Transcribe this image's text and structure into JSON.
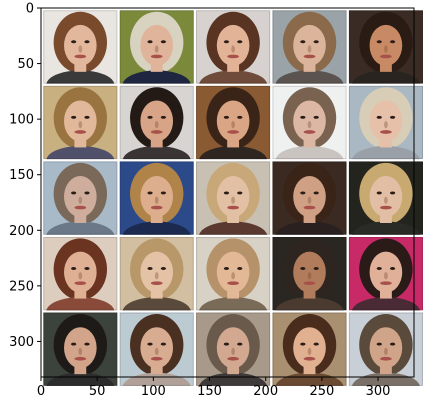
{
  "figure": {
    "x_ticks": [
      "0",
      "50",
      "100",
      "150",
      "200",
      "250",
      "300"
    ],
    "y_ticks": [
      "0",
      "50",
      "100",
      "150",
      "200",
      "250",
      "300"
    ],
    "grid": {
      "rows": 5,
      "cols": 5
    },
    "tiles": [
      {
        "bg": "#e9e6e2",
        "hair": "#7a4a2c",
        "skin": "#e2b79c",
        "shirt": "#3a3a3a"
      },
      {
        "bg": "#7b8a3a",
        "hair": "#d8d2c0",
        "skin": "#e0b49a",
        "shirt": "#1f2640"
      },
      {
        "bg": "#d7d2cf",
        "hair": "#5a3422",
        "skin": "#e3b398",
        "shirt": "#6e4b3a"
      },
      {
        "bg": "#9aa3a8",
        "hair": "#8a6a4a",
        "skin": "#dcb49c",
        "shirt": "#5a5350"
      },
      {
        "bg": "#3a2c24",
        "hair": "#2a1c14",
        "skin": "#c88a64",
        "shirt": "#2a2420"
      },
      {
        "bg": "#c8b080",
        "hair": "#9a7440",
        "skin": "#e2b89a",
        "shirt": "#50506a"
      },
      {
        "bg": "#d7d4d1",
        "hair": "#231a16",
        "skin": "#d8a488",
        "shirt": "#3a3434"
      },
      {
        "bg": "#8a5a32",
        "hair": "#3a2418",
        "skin": "#d9a584",
        "shirt": "#2f2622"
      },
      {
        "bg": "#eef1f0",
        "hair": "#7a6250",
        "skin": "#dcb8a4",
        "shirt": "#c9c4c0"
      },
      {
        "bg": "#aab8c4",
        "hair": "#d8cdb6",
        "skin": "#e6c0a8",
        "shirt": "#9aa0a8"
      },
      {
        "bg": "#a8bac8",
        "hair": "#7a6858",
        "skin": "#cfad9c",
        "shirt": "#6a7888"
      },
      {
        "bg": "#2c4a8a",
        "hair": "#b08448",
        "skin": "#dcae8e",
        "shirt": "#1c2a50"
      },
      {
        "bg": "#c8c0b2",
        "hair": "#c8a878",
        "skin": "#e2c0a4",
        "shirt": "#5a3a30"
      },
      {
        "bg": "#3a2a22",
        "hair": "#3a2418",
        "skin": "#d0a084",
        "shirt": "#2a2020"
      },
      {
        "bg": "#23241e",
        "hair": "#c8aa70",
        "skin": "#e2bea4",
        "shirt": "#2a2a26"
      },
      {
        "bg": "#dccdbf",
        "hair": "#6a3420",
        "skin": "#e0b094",
        "shirt": "#8a4a3a"
      },
      {
        "bg": "#d2bea0",
        "hair": "#b89868",
        "skin": "#e4c2a6",
        "shirt": "#5a4a3c"
      },
      {
        "bg": "#d8d2c6",
        "hair": "#b6926a",
        "skin": "#e2b896",
        "shirt": "#7a6a58"
      },
      {
        "bg": "#2a2622",
        "hair": "#2e2420",
        "skin": "#b07c5c",
        "shirt": "#4a3a30"
      },
      {
        "bg": "#c82a68",
        "hair": "#2a1a18",
        "skin": "#e0b098",
        "shirt": "#4a2a34"
      },
      {
        "bg": "#3c423c",
        "hair": "#1e1a18",
        "skin": "#d2a48a",
        "shirt": "#2c2c2c"
      },
      {
        "bg": "#bccbd2",
        "hair": "#4a3020",
        "skin": "#d8ac90",
        "shirt": "#b0a098"
      },
      {
        "bg": "#a89a8a",
        "hair": "#6a5a4c",
        "skin": "#d2a890",
        "shirt": "#3e3a3a"
      },
      {
        "bg": "#a89070",
        "hair": "#4a2c1c",
        "skin": "#e0b090",
        "shirt": "#6a4a32"
      },
      {
        "bg": "#c8cfd6",
        "hair": "#5a4a3c",
        "skin": "#d0a488",
        "shirt": "#7a7068"
      }
    ]
  }
}
